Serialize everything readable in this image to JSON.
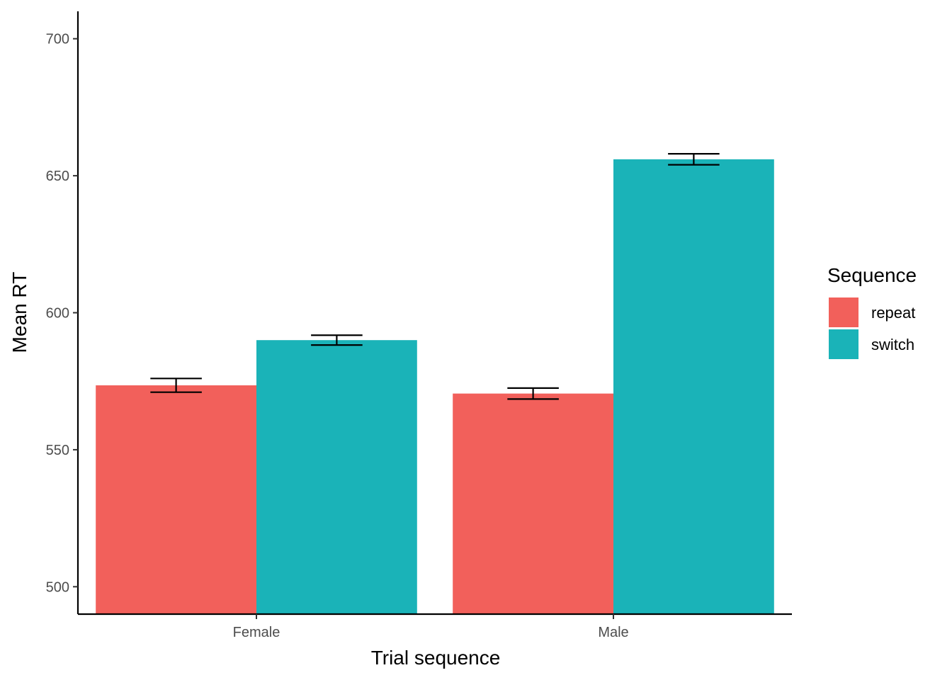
{
  "chart_data": {
    "type": "bar",
    "title": "",
    "xlabel": "Trial sequence",
    "ylabel": "Mean RT",
    "ylim": [
      490,
      710
    ],
    "yticks": [
      500,
      550,
      600,
      650,
      700
    ],
    "categories": [
      "Female",
      "Male"
    ],
    "series": [
      {
        "name": "repeat",
        "color": "#F2605B",
        "values": [
          573.5,
          570.5
        ],
        "errors": [
          2.5,
          2.0
        ]
      },
      {
        "name": "switch",
        "color": "#1AB3B8",
        "values": [
          590.0,
          656.0
        ],
        "errors": [
          1.8,
          2.0
        ]
      }
    ],
    "legend": {
      "title": "Sequence",
      "position": "right"
    },
    "grid": false
  }
}
